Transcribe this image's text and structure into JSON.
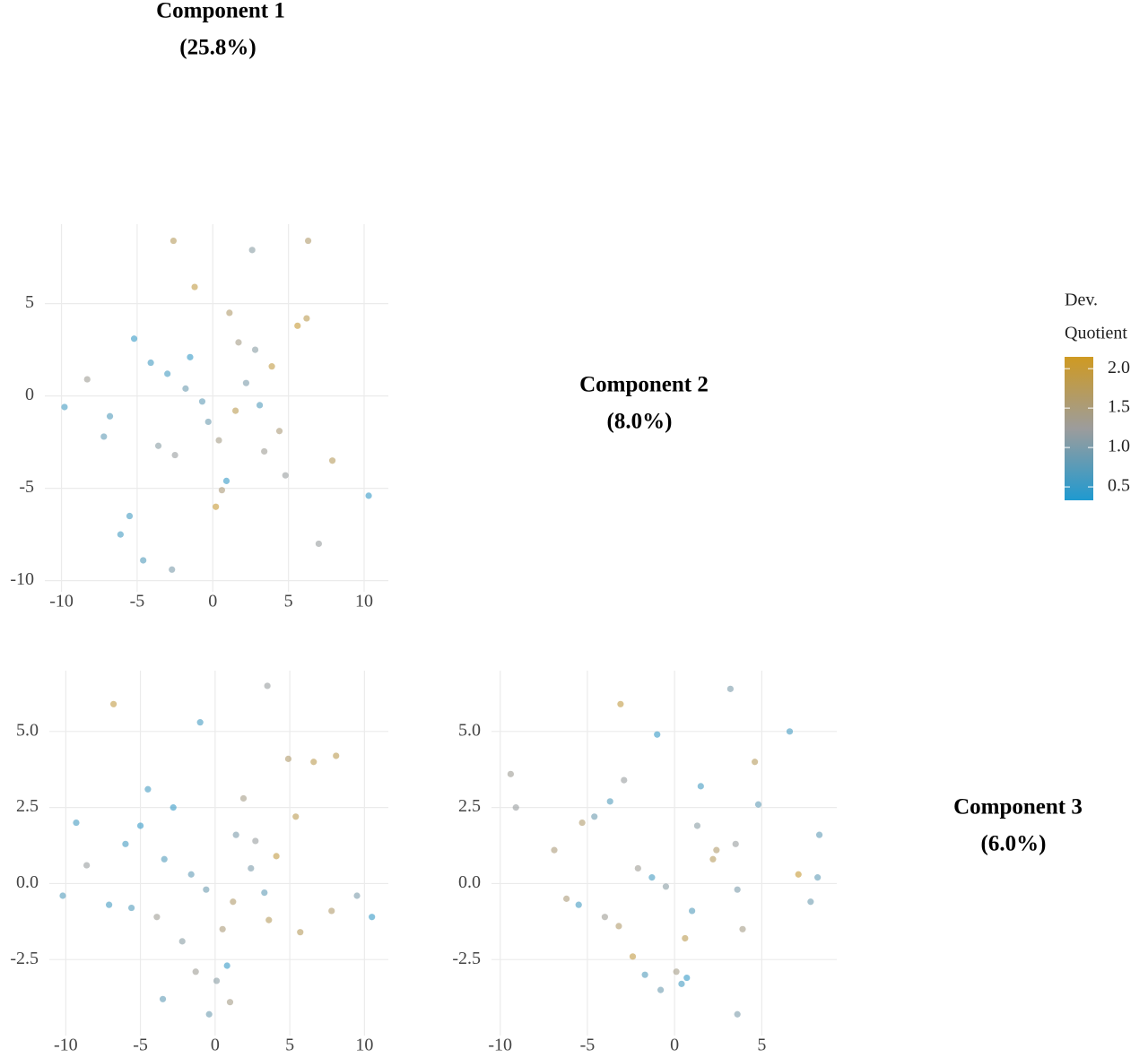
{
  "diagonal": [
    {
      "title": "Component 1",
      "subtitle": "(25.8%)"
    },
    {
      "title": "Component 2",
      "subtitle": "(8.0%)"
    },
    {
      "title": "Component 3",
      "subtitle": "(6.0%)"
    }
  ],
  "legend": {
    "title_lines": [
      "Dev.",
      "Quotient"
    ],
    "colors": [
      "#1f9ad0",
      "#9c9c9c",
      "#cf9a22"
    ],
    "limits": [
      0.33,
      2.15
    ],
    "ticks": [
      {
        "value": 2,
        "label": "2.0"
      },
      1.5,
      {
        "value": 1,
        "label": "1.0"
      },
      0.5
    ]
  },
  "chart_data": [
    {
      "type": "scatter",
      "xlim": [
        -11.1,
        11.6
      ],
      "ylim": [
        -10.6,
        9.3
      ],
      "xticks": [
        -10,
        -5,
        0,
        5,
        10
      ],
      "yticks": [
        -10,
        -5,
        0,
        5
      ],
      "grid": true,
      "x": [
        -3,
        1.5,
        2.8,
        -5.2,
        0.4,
        -1.8,
        3.9,
        -6.8,
        5.6,
        -2.5,
        1.1,
        -0.7,
        4.4,
        -4.1,
        2.2,
        -8.3,
        7.9,
        0.9,
        -3.6,
        6.3,
        -1.2,
        3.1,
        -9.8,
        10.3,
        -2.6,
        0.2,
        -5.5,
        4.8,
        1.7,
        -0.3,
        2.6,
        -7.2,
        6.2,
        -4.6,
        -2.7,
        7.0,
        -1.5,
        0.6,
        3.4,
        -6.1
      ],
      "y": [
        1.2,
        -0.8,
        2.5,
        3.1,
        -2.4,
        0.4,
        1.6,
        -1.1,
        3.8,
        -3.2,
        4.5,
        -0.3,
        -1.9,
        1.8,
        0.7,
        0.9,
        -3.5,
        -4.6,
        -2.7,
        8.4,
        5.9,
        -0.5,
        -0.6,
        -5.4,
        8.4,
        -6.0,
        -6.5,
        -4.3,
        2.9,
        -1.4,
        7.9,
        -2.2,
        4.2,
        -8.9,
        -9.4,
        -8.0,
        2.1,
        -5.1,
        -3.0,
        -7.5
      ],
      "color_values": [
        0.6,
        1.8,
        1.1,
        0.5,
        1.4,
        0.9,
        1.9,
        0.7,
        2.0,
        1.2,
        1.6,
        0.8,
        1.5,
        0.6,
        1.0,
        1.3,
        1.7,
        0.5,
        1.1,
        1.6,
        1.9,
        0.7,
        0.6,
        0.5,
        1.7,
        2.0,
        0.6,
        1.2,
        1.4,
        0.9,
        1.1,
        0.8,
        1.8,
        0.7,
        1.0,
        1.2,
        0.5,
        1.5,
        1.3,
        0.6
      ]
    },
    {
      "type": "scatter",
      "xlim": [
        -11.1,
        11.6
      ],
      "ylim": [
        -5,
        7
      ],
      "xticks": [
        -10,
        -5,
        0,
        5,
        10
      ],
      "yticks": [
        {
          "value": -2.5,
          "label": "-2.5"
        },
        {
          "value": 0,
          "label": "0.0"
        },
        {
          "value": 2.5,
          "label": "2.5"
        },
        {
          "value": 5,
          "label": "5.0"
        }
      ],
      "grid": true,
      "x": [
        -3.4,
        1.2,
        2.7,
        -5.0,
        0.5,
        -1.6,
        4.1,
        -7.1,
        5.4,
        -2.2,
        1.9,
        -0.6,
        3.6,
        -4.5,
        2.4,
        -8.6,
        7.8,
        0.8,
        -3.9,
        6.6,
        -1.0,
        3.3,
        -10.2,
        10.5,
        -6.8,
        0.1,
        -5.6,
        4.9,
        1.4,
        -0.4,
        3.5,
        -9.3,
        8.1,
        -3.5,
        -1.3,
        9.5,
        -2.8,
        1.0,
        5.7,
        -6.0
      ],
      "y": [
        0.8,
        -0.6,
        1.4,
        1.9,
        -1.5,
        0.3,
        0.9,
        -0.7,
        2.2,
        -1.9,
        2.8,
        -0.2,
        -1.2,
        3.1,
        0.5,
        0.6,
        -0.9,
        -2.7,
        -1.1,
        4.0,
        5.3,
        -0.3,
        -0.4,
        -1.1,
        5.9,
        -3.2,
        -0.8,
        4.1,
        1.6,
        -4.3,
        6.5,
        2.0,
        4.2,
        -3.8,
        -2.9,
        -0.4,
        2.5,
        -3.9,
        -1.6,
        1.3
      ],
      "color_values": [
        0.7,
        1.6,
        1.2,
        0.5,
        1.5,
        0.8,
        1.9,
        0.6,
        1.8,
        1.1,
        1.4,
        0.9,
        1.7,
        0.6,
        1.0,
        1.2,
        1.6,
        0.5,
        1.3,
        1.8,
        0.6,
        0.8,
        0.7,
        0.5,
        1.9,
        1.1,
        0.7,
        1.6,
        1.0,
        0.9,
        1.2,
        0.6,
        1.8,
        0.8,
        1.3,
        1.0,
        0.5,
        1.4,
        1.7,
        0.6
      ]
    },
    {
      "type": "scatter",
      "xlim": [
        -10.5,
        9.3
      ],
      "ylim": [
        -5,
        7
      ],
      "xticks": [
        -10,
        -5,
        0,
        5
      ],
      "yticks": [
        {
          "value": -2.5,
          "label": "-2.5"
        },
        {
          "value": 0,
          "label": "0.0"
        },
        {
          "value": 2.5,
          "label": "2.5"
        },
        {
          "value": 5,
          "label": "5.0"
        }
      ],
      "grid": true,
      "x": [
        -2.1,
        1.0,
        2.4,
        -4.6,
        0.6,
        -1.3,
        3.5,
        -6.2,
        4.8,
        -2.4,
        1.5,
        -0.5,
        3.9,
        -3.7,
        2.2,
        -9.4,
        7.8,
        0.7,
        -3.2,
        6.6,
        -1.0,
        3.6,
        -9.1,
        8.3,
        -3.1,
        0.1,
        -5.5,
        4.6,
        1.3,
        -0.8,
        3.2,
        -6.9,
        7.1,
        -1.7,
        -4.0,
        8.2,
        -2.9,
        0.4,
        3.6,
        -5.3
      ],
      "y": [
        0.5,
        -0.9,
        1.1,
        2.2,
        -1.8,
        0.2,
        1.3,
        -0.5,
        2.6,
        -2.4,
        3.2,
        -0.1,
        -1.5,
        2.7,
        0.8,
        3.6,
        -0.6,
        -3.1,
        -1.4,
        5.0,
        4.9,
        -0.2,
        2.5,
        1.6,
        5.9,
        -2.9,
        -0.7,
        4.0,
        1.9,
        -3.5,
        6.4,
        1.1,
        0.3,
        -3.0,
        -1.1,
        0.2,
        3.4,
        -3.3,
        -4.3,
        2.0
      ],
      "color_values": [
        1.3,
        0.7,
        1.6,
        0.9,
        1.8,
        0.6,
        1.2,
        1.5,
        0.8,
        1.9,
        0.6,
        1.1,
        1.4,
        0.7,
        1.7,
        1.3,
        0.9,
        0.5,
        1.6,
        0.6,
        0.5,
        1.0,
        1.2,
        0.8,
        1.9,
        1.4,
        0.6,
        1.7,
        1.1,
        0.9,
        1.0,
        1.5,
        2.0,
        0.7,
        1.3,
        0.8,
        1.2,
        0.6,
        1.0,
        1.6
      ]
    }
  ]
}
